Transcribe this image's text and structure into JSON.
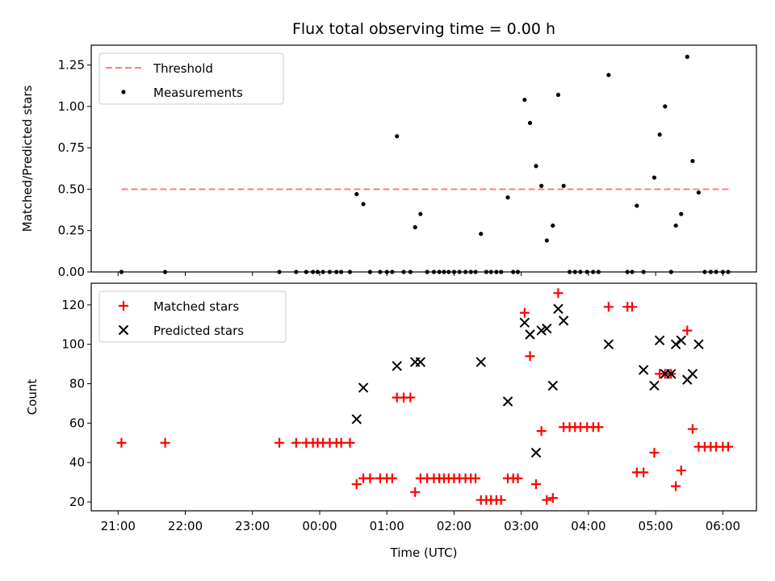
{
  "chart_data": [
    {
      "type": "scatter",
      "title": "Flux total observing time = 0.00 h",
      "xlabel": "",
      "ylabel": "Matched/Predicted stars",
      "xlim": [
        20.6,
        30.5
      ],
      "ylim": [
        0.0,
        1.37
      ],
      "yticks": [
        0.0,
        0.25,
        0.5,
        0.75,
        1.0,
        1.25
      ],
      "ytick_labels": [
        "0.00",
        "0.25",
        "0.50",
        "0.75",
        "1.00",
        "1.25"
      ],
      "legend": {
        "position": "top-left",
        "entries": [
          "Threshold",
          "Measurements"
        ]
      },
      "threshold": {
        "name": "Threshold",
        "y": 0.5,
        "x_range": [
          21.05,
          30.1
        ],
        "color": "#ff7f7f"
      },
      "series": [
        {
          "name": "Measurements",
          "color": "#000000",
          "x": [
            21.05,
            21.7,
            23.4,
            23.65,
            23.8,
            23.9,
            23.97,
            24.05,
            24.15,
            24.25,
            24.32,
            24.45,
            24.55,
            24.65,
            24.75,
            24.9,
            25.0,
            25.08,
            25.15,
            25.25,
            25.35,
            25.42,
            25.5,
            25.6,
            25.7,
            25.78,
            25.85,
            25.92,
            26.0,
            26.08,
            26.17,
            26.25,
            26.32,
            26.4,
            26.48,
            26.55,
            26.63,
            26.7,
            26.8,
            26.88,
            26.95,
            27.05,
            27.13,
            27.22,
            27.3,
            27.38,
            27.47,
            27.55,
            27.63,
            27.72,
            27.8,
            27.88,
            27.98,
            28.07,
            28.15,
            28.3,
            28.58,
            28.65,
            28.72,
            28.82,
            28.98,
            29.06,
            29.14,
            29.23,
            29.3,
            29.38,
            29.47,
            29.55,
            29.64,
            29.73,
            29.82,
            29.9,
            30.0,
            30.08
          ],
          "y": [
            0.0,
            0.0,
            0.0,
            0.0,
            0.0,
            0.0,
            0.0,
            0.0,
            0.0,
            0.0,
            0.0,
            0.0,
            0.47,
            0.41,
            0.0,
            0.0,
            0.0,
            0.0,
            0.82,
            0.0,
            0.0,
            0.27,
            0.35,
            0.0,
            0.0,
            0.0,
            0.0,
            0.0,
            0.0,
            0.0,
            0.0,
            0.0,
            0.0,
            0.23,
            0.0,
            0.0,
            0.0,
            0.0,
            0.45,
            0.0,
            0.0,
            1.04,
            0.9,
            0.64,
            0.52,
            0.19,
            0.28,
            1.07,
            0.52,
            0.0,
            0.0,
            0.0,
            0.0,
            0.0,
            0.0,
            1.19,
            0.0,
            0.0,
            0.4,
            0.0,
            0.57,
            0.83,
            1.0,
            0.0,
            0.28,
            0.35,
            1.3,
            0.67,
            0.48,
            0.0,
            0.0,
            0.0,
            0.0,
            0.0
          ]
        }
      ]
    },
    {
      "type": "scatter",
      "title": "",
      "xlabel": "Time (UTC)",
      "ylabel": "Count",
      "xlim": [
        20.6,
        30.5
      ],
      "ylim": [
        15.5,
        131
      ],
      "yticks": [
        20,
        40,
        60,
        80,
        100,
        120
      ],
      "ytick_labels": [
        "20",
        "40",
        "60",
        "80",
        "100",
        "120"
      ],
      "xticks": [
        21,
        22,
        23,
        24,
        25,
        26,
        27,
        28,
        29,
        30
      ],
      "xtick_labels": [
        "21:00",
        "22:00",
        "23:00",
        "00:00",
        "01:00",
        "02:00",
        "03:00",
        "04:00",
        "05:00",
        "06:00"
      ],
      "legend": {
        "position": "top-left",
        "entries": [
          "Matched stars",
          "Predicted stars"
        ]
      },
      "series": [
        {
          "name": "Matched stars",
          "marker": "plus",
          "color": "#ff0000",
          "x": [
            21.05,
            21.7,
            23.4,
            23.65,
            23.8,
            23.9,
            23.97,
            24.05,
            24.15,
            24.25,
            24.32,
            24.45,
            24.55,
            24.65,
            24.75,
            24.9,
            25.0,
            25.08,
            25.15,
            25.25,
            25.35,
            25.42,
            25.5,
            25.6,
            25.7,
            25.78,
            25.85,
            25.92,
            26.0,
            26.08,
            26.17,
            26.25,
            26.32,
            26.4,
            26.48,
            26.55,
            26.63,
            26.7,
            26.8,
            26.88,
            26.95,
            27.05,
            27.13,
            27.22,
            27.3,
            27.38,
            27.47,
            27.55,
            27.63,
            27.72,
            27.8,
            27.88,
            27.98,
            28.07,
            28.15,
            28.3,
            28.58,
            28.65,
            28.72,
            28.82,
            28.98,
            29.06,
            29.14,
            29.23,
            29.3,
            29.38,
            29.47,
            29.55,
            29.64,
            29.73,
            29.82,
            29.9,
            30.0,
            30.08
          ],
          "y": [
            50,
            50,
            50,
            50,
            50,
            50,
            50,
            50,
            50,
            50,
            50,
            50,
            29,
            32,
            32,
            32,
            32,
            32,
            73,
            73,
            73,
            25,
            32,
            32,
            32,
            32,
            32,
            32,
            32,
            32,
            32,
            32,
            32,
            21,
            21,
            21,
            21,
            21,
            32,
            32,
            32,
            116,
            94,
            29,
            56,
            21,
            22,
            126,
            58,
            58,
            58,
            58,
            58,
            58,
            58,
            119,
            119,
            119,
            35,
            35,
            45,
            85,
            85,
            85,
            28,
            36,
            107,
            57,
            48,
            48,
            48,
            48,
            48,
            48
          ]
        },
        {
          "name": "Predicted stars",
          "marker": "x",
          "color": "#000000",
          "x": [
            24.55,
            24.65,
            25.15,
            25.42,
            25.5,
            26.4,
            26.8,
            27.05,
            27.13,
            27.22,
            27.3,
            27.38,
            27.47,
            27.55,
            27.63,
            28.3,
            28.82,
            28.98,
            29.06,
            29.14,
            29.23,
            29.3,
            29.38,
            29.47,
            29.55,
            29.64
          ],
          "y": [
            62,
            78,
            89,
            91,
            91,
            91,
            71,
            111,
            105,
            45,
            107,
            108,
            79,
            118,
            112,
            100,
            87,
            79,
            102,
            85,
            85,
            100,
            102,
            82,
            85,
            100
          ]
        }
      ]
    }
  ]
}
